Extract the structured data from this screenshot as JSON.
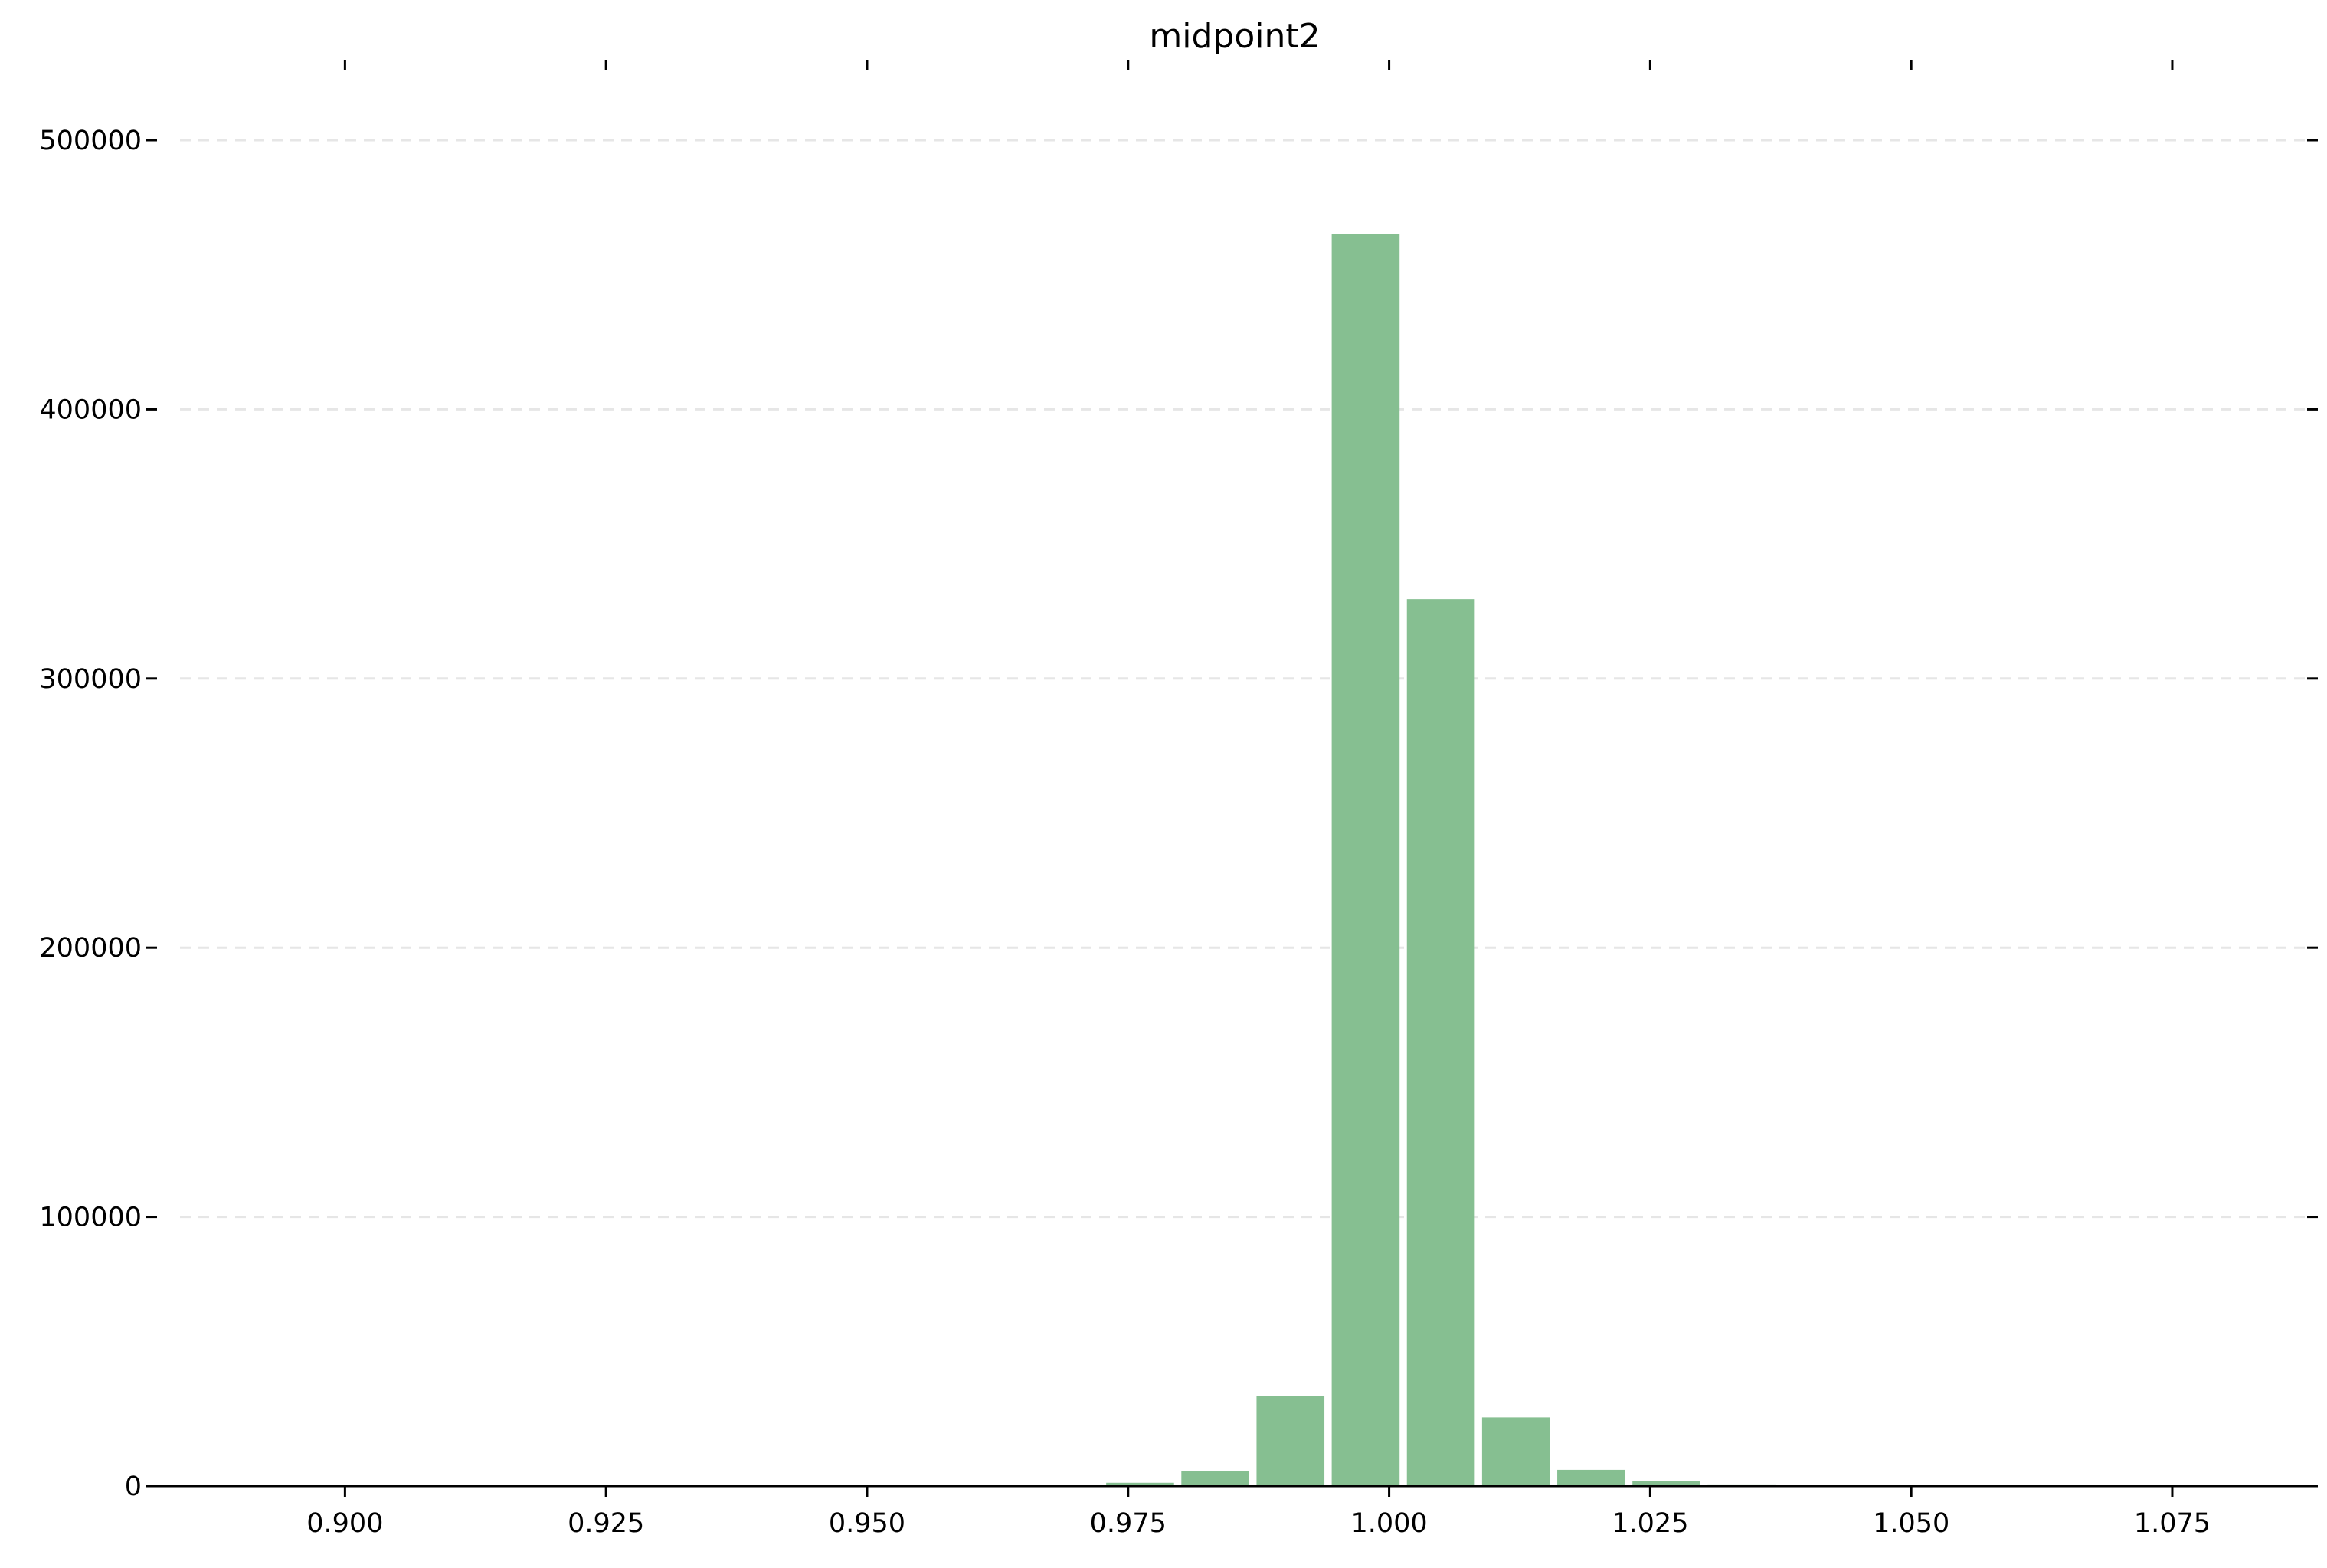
{
  "chart_data": {
    "type": "bar",
    "title": "midpoint2",
    "xlabel": "",
    "ylabel": "",
    "xlim": [
      0.882,
      1.0885
    ],
    "ylim": [
      0,
      500000
    ],
    "bar_color": "#86bf91",
    "grid": "horizontal dashed",
    "x_ticks": [
      {
        "value": 0.9,
        "label": "0.900"
      },
      {
        "value": 0.925,
        "label": "0.925"
      },
      {
        "value": 0.95,
        "label": "0.950"
      },
      {
        "value": 0.975,
        "label": "0.975"
      },
      {
        "value": 1.0,
        "label": "1.000"
      },
      {
        "value": 1.025,
        "label": "1.025"
      },
      {
        "value": 1.05,
        "label": "1.050"
      },
      {
        "value": 1.075,
        "label": "1.075"
      }
    ],
    "y_ticks": [
      {
        "value": 0,
        "label": "0"
      },
      {
        "value": 100000,
        "label": "100000"
      },
      {
        "value": 200000,
        "label": "200000"
      },
      {
        "value": 300000,
        "label": "300000"
      },
      {
        "value": 400000,
        "label": "400000"
      },
      {
        "value": 500000,
        "label": "500000"
      }
    ],
    "bins": [
      {
        "x0": 0.9658,
        "x1": 0.9722,
        "count": 500
      },
      {
        "x0": 0.9729,
        "x1": 0.9794,
        "count": 1200
      },
      {
        "x0": 0.9801,
        "x1": 0.9866,
        "count": 5500
      },
      {
        "x0": 0.9873,
        "x1": 0.9938,
        "count": 33500
      },
      {
        "x0": 0.9945,
        "x1": 1.001,
        "count": 465000
      },
      {
        "x0": 1.0017,
        "x1": 1.0082,
        "count": 329500
      },
      {
        "x0": 1.0089,
        "x1": 1.0154,
        "count": 25500
      },
      {
        "x0": 1.0161,
        "x1": 1.0226,
        "count": 6000
      },
      {
        "x0": 1.0233,
        "x1": 1.0298,
        "count": 1800
      },
      {
        "x0": 1.0305,
        "x1": 1.037,
        "count": 600
      },
      {
        "x0": 1.0377,
        "x1": 1.0442,
        "count": 300
      }
    ]
  }
}
